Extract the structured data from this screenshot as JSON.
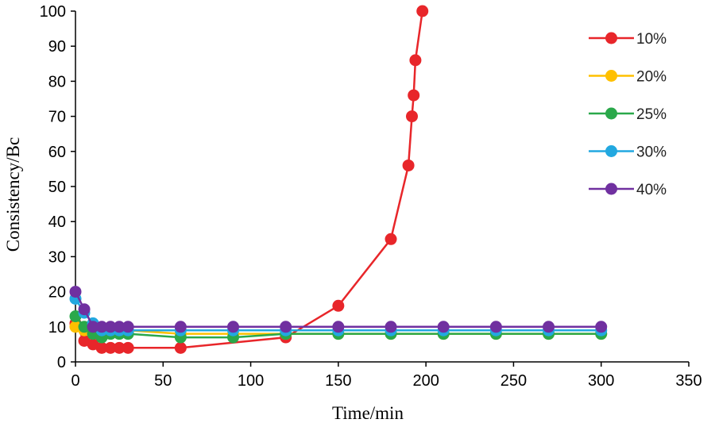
{
  "chart_data": {
    "type": "line",
    "xlabel": "Time/min",
    "ylabel": "Consistency/Bc",
    "xlim": [
      0,
      350
    ],
    "ylim": [
      0,
      100
    ],
    "xticks": [
      0,
      50,
      100,
      150,
      200,
      250,
      300,
      350
    ],
    "yticks": [
      0,
      10,
      20,
      30,
      40,
      50,
      60,
      70,
      80,
      90,
      100
    ],
    "grid": false,
    "legend_position": "top-right",
    "series": [
      {
        "name": "10%",
        "color": "#e8262a",
        "x": [
          0,
          5,
          10,
          15,
          20,
          25,
          30,
          60,
          120,
          150,
          180,
          190,
          192,
          193,
          194,
          198
        ],
        "y": [
          11,
          6,
          5,
          4,
          4,
          4,
          4,
          4,
          7,
          16,
          35,
          56,
          70,
          76,
          86,
          100
        ]
      },
      {
        "name": "20%",
        "color": "#ffc000",
        "x": [
          0,
          5,
          10,
          15,
          20,
          25,
          30,
          60,
          90,
          120,
          150,
          180,
          210,
          240,
          270,
          300
        ],
        "y": [
          10,
          9,
          9,
          9,
          9,
          9,
          9,
          8,
          8,
          8,
          8,
          8,
          8,
          8,
          8,
          8
        ]
      },
      {
        "name": "25%",
        "color": "#2aa84a",
        "x": [
          0,
          5,
          10,
          15,
          20,
          25,
          30,
          60,
          90,
          120,
          150,
          180,
          210,
          240,
          270,
          300
        ],
        "y": [
          13,
          10,
          8,
          7,
          8,
          8,
          8,
          7,
          7,
          8,
          8,
          8,
          8,
          8,
          8,
          8
        ]
      },
      {
        "name": "30%",
        "color": "#22a8e0",
        "x": [
          0,
          5,
          10,
          15,
          20,
          25,
          30,
          60,
          90,
          120,
          150,
          180,
          210,
          240,
          270,
          300
        ],
        "y": [
          18,
          14,
          11,
          9,
          9,
          9,
          9,
          9,
          9,
          9,
          9,
          9,
          9,
          9,
          9,
          9
        ]
      },
      {
        "name": "40%",
        "color": "#7030a0",
        "x": [
          0,
          5,
          10,
          15,
          20,
          25,
          30,
          60,
          90,
          120,
          150,
          180,
          210,
          240,
          270,
          300
        ],
        "y": [
          20,
          15,
          10,
          10,
          10,
          10,
          10,
          10,
          10,
          10,
          10,
          10,
          10,
          10,
          10,
          10
        ]
      }
    ]
  }
}
